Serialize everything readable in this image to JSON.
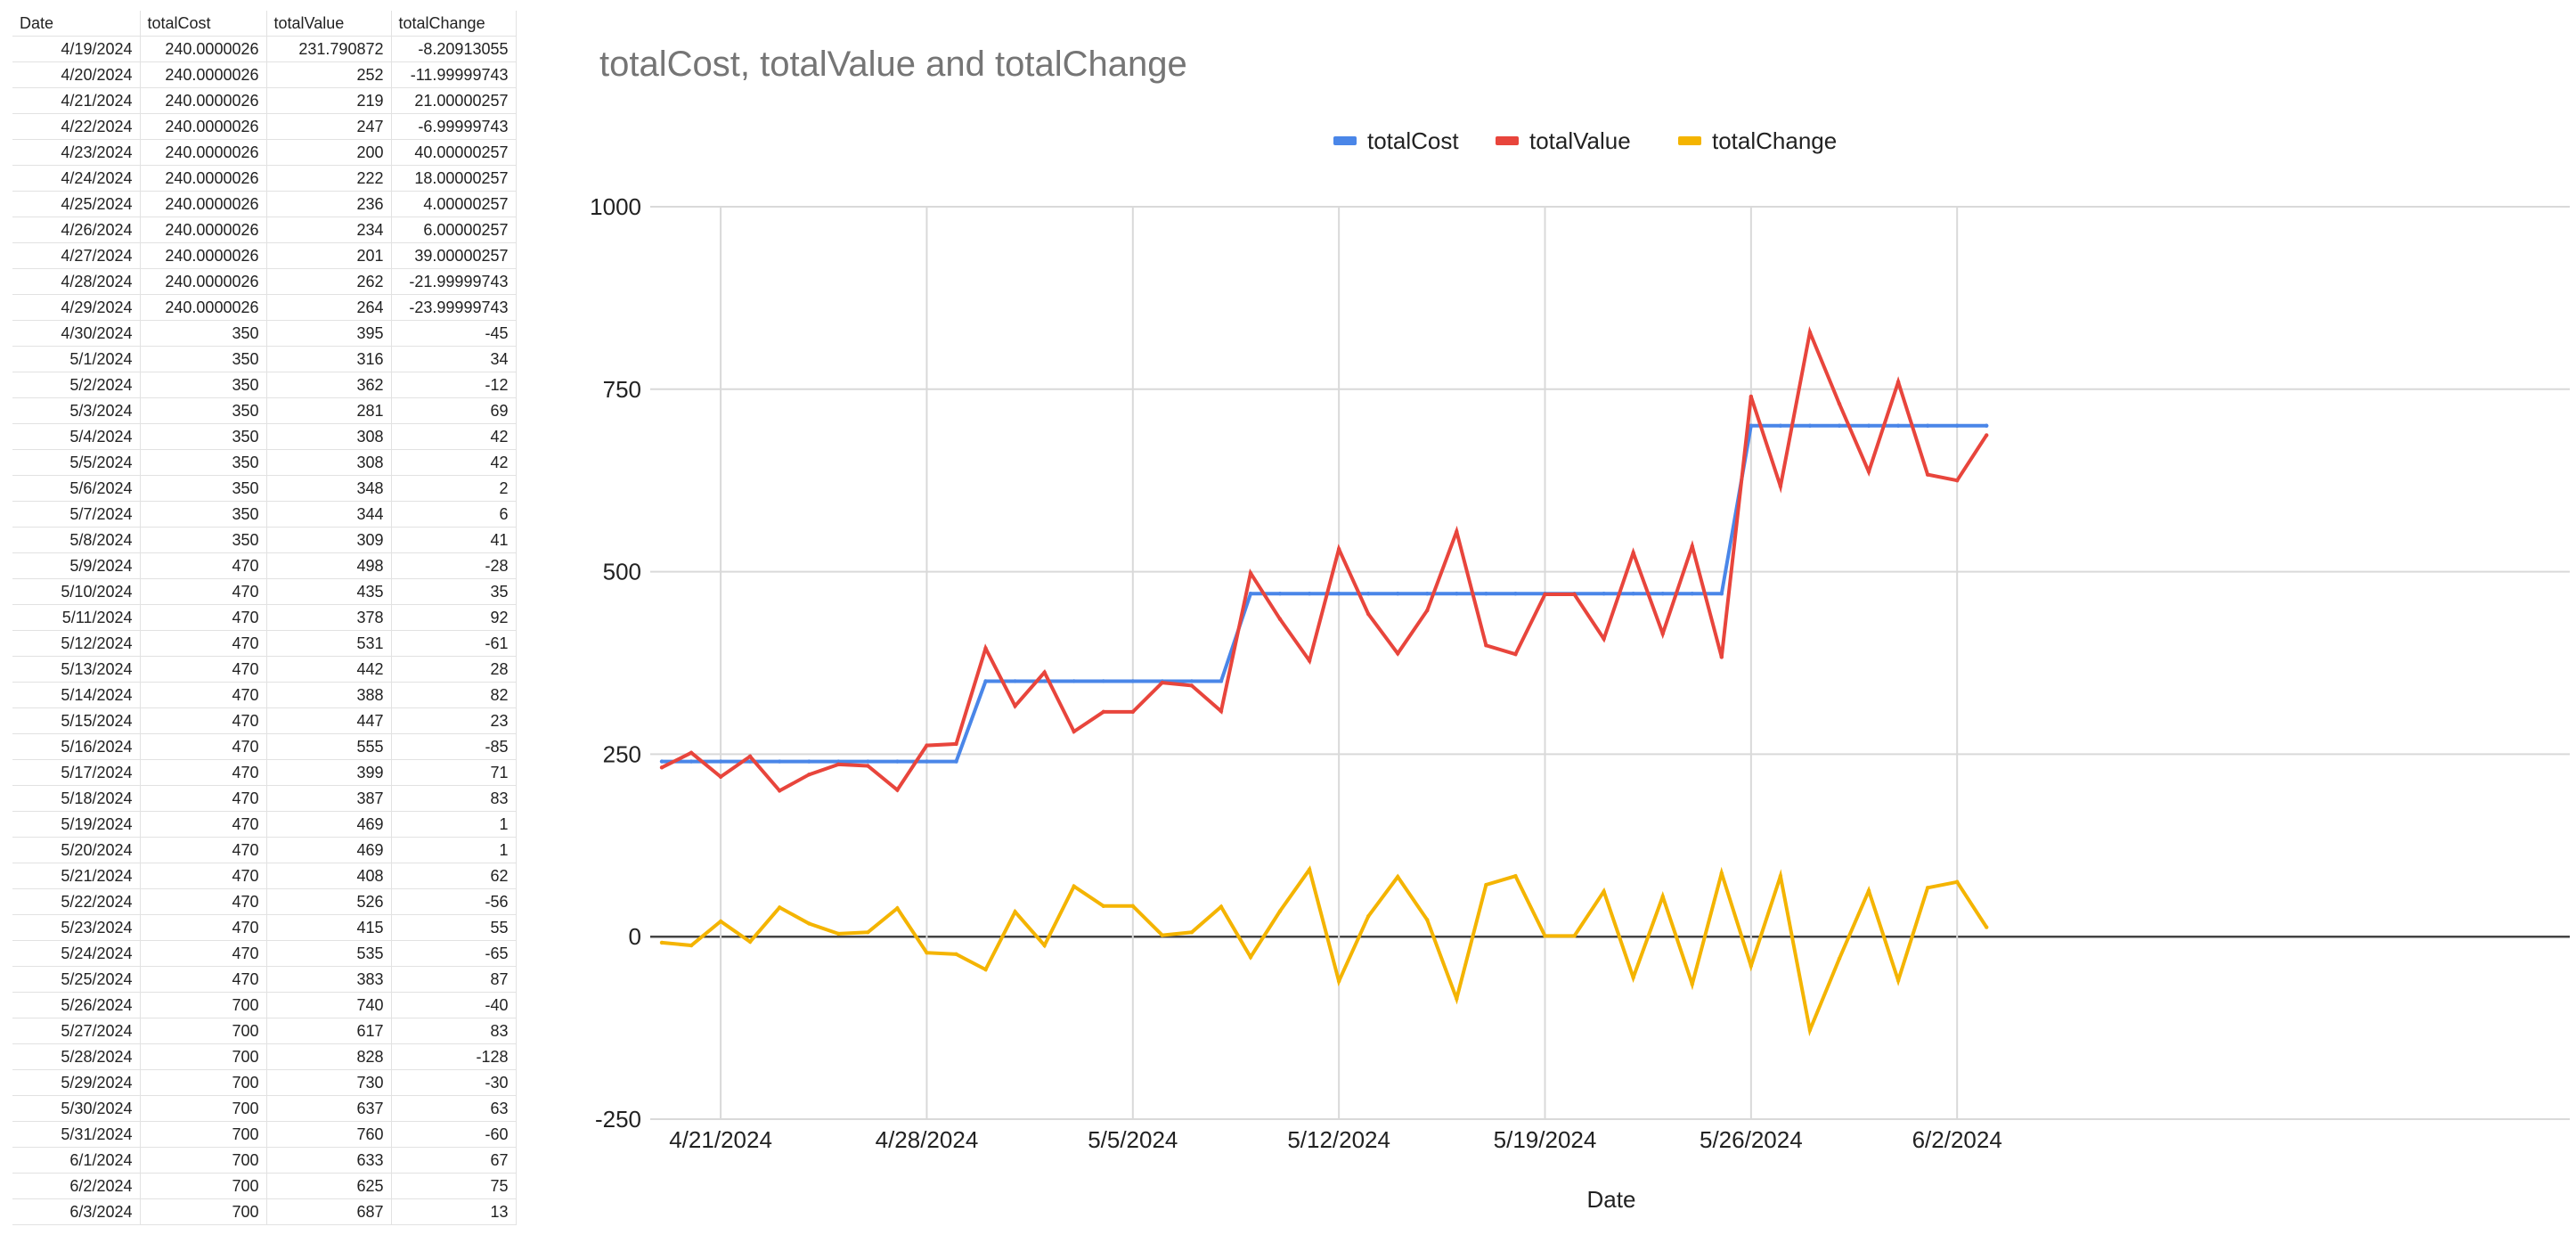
{
  "sheet": {
    "headers": [
      "Date",
      "totalCost",
      "totalValue",
      "totalChange"
    ],
    "rows": [
      [
        "4/19/2024",
        "240.0000026",
        "231.790872",
        "-8.20913055"
      ],
      [
        "4/20/2024",
        "240.0000026",
        "252",
        "-11.99999743"
      ],
      [
        "4/21/2024",
        "240.0000026",
        "219",
        "21.00000257"
      ],
      [
        "4/22/2024",
        "240.0000026",
        "247",
        "-6.99999743"
      ],
      [
        "4/23/2024",
        "240.0000026",
        "200",
        "40.00000257"
      ],
      [
        "4/24/2024",
        "240.0000026",
        "222",
        "18.00000257"
      ],
      [
        "4/25/2024",
        "240.0000026",
        "236",
        "4.00000257"
      ],
      [
        "4/26/2024",
        "240.0000026",
        "234",
        "6.00000257"
      ],
      [
        "4/27/2024",
        "240.0000026",
        "201",
        "39.00000257"
      ],
      [
        "4/28/2024",
        "240.0000026",
        "262",
        "-21.99999743"
      ],
      [
        "4/29/2024",
        "240.0000026",
        "264",
        "-23.99999743"
      ],
      [
        "4/30/2024",
        "350",
        "395",
        "-45"
      ],
      [
        "5/1/2024",
        "350",
        "316",
        "34"
      ],
      [
        "5/2/2024",
        "350",
        "362",
        "-12"
      ],
      [
        "5/3/2024",
        "350",
        "281",
        "69"
      ],
      [
        "5/4/2024",
        "350",
        "308",
        "42"
      ],
      [
        "5/5/2024",
        "350",
        "308",
        "42"
      ],
      [
        "5/6/2024",
        "350",
        "348",
        "2"
      ],
      [
        "5/7/2024",
        "350",
        "344",
        "6"
      ],
      [
        "5/8/2024",
        "350",
        "309",
        "41"
      ],
      [
        "5/9/2024",
        "470",
        "498",
        "-28"
      ],
      [
        "5/10/2024",
        "470",
        "435",
        "35"
      ],
      [
        "5/11/2024",
        "470",
        "378",
        "92"
      ],
      [
        "5/12/2024",
        "470",
        "531",
        "-61"
      ],
      [
        "5/13/2024",
        "470",
        "442",
        "28"
      ],
      [
        "5/14/2024",
        "470",
        "388",
        "82"
      ],
      [
        "5/15/2024",
        "470",
        "447",
        "23"
      ],
      [
        "5/16/2024",
        "470",
        "555",
        "-85"
      ],
      [
        "5/17/2024",
        "470",
        "399",
        "71"
      ],
      [
        "5/18/2024",
        "470",
        "387",
        "83"
      ],
      [
        "5/19/2024",
        "470",
        "469",
        "1"
      ],
      [
        "5/20/2024",
        "470",
        "469",
        "1"
      ],
      [
        "5/21/2024",
        "470",
        "408",
        "62"
      ],
      [
        "5/22/2024",
        "470",
        "526",
        "-56"
      ],
      [
        "5/23/2024",
        "470",
        "415",
        "55"
      ],
      [
        "5/24/2024",
        "470",
        "535",
        "-65"
      ],
      [
        "5/25/2024",
        "470",
        "383",
        "87"
      ],
      [
        "5/26/2024",
        "700",
        "740",
        "-40"
      ],
      [
        "5/27/2024",
        "700",
        "617",
        "83"
      ],
      [
        "5/28/2024",
        "700",
        "828",
        "-128"
      ],
      [
        "5/29/2024",
        "700",
        "730",
        "-30"
      ],
      [
        "5/30/2024",
        "700",
        "637",
        "63"
      ],
      [
        "5/31/2024",
        "700",
        "760",
        "-60"
      ],
      [
        "6/1/2024",
        "700",
        "633",
        "67"
      ],
      [
        "6/2/2024",
        "700",
        "625",
        "75"
      ],
      [
        "6/3/2024",
        "700",
        "687",
        "13"
      ]
    ]
  },
  "chart_data": {
    "type": "line",
    "title": "totalCost, totalValue and totalChange",
    "xlabel": "Date",
    "ylabel": "",
    "ylim": [
      -250,
      1000
    ],
    "yticks": [
      -250,
      0,
      250,
      500,
      750,
      1000
    ],
    "xticks": [
      {
        "index": 2,
        "label": "4/21/2024"
      },
      {
        "index": 9,
        "label": "4/28/2024"
      },
      {
        "index": 16,
        "label": "5/5/2024"
      },
      {
        "index": 23,
        "label": "5/12/2024"
      },
      {
        "index": 30,
        "label": "5/19/2024"
      },
      {
        "index": 37,
        "label": "5/26/2024"
      },
      {
        "index": 44,
        "label": "6/2/2024"
      }
    ],
    "grid": true,
    "legend_position": "top",
    "x": [
      "4/19/2024",
      "4/20/2024",
      "4/21/2024",
      "4/22/2024",
      "4/23/2024",
      "4/24/2024",
      "4/25/2024",
      "4/26/2024",
      "4/27/2024",
      "4/28/2024",
      "4/29/2024",
      "4/30/2024",
      "5/1/2024",
      "5/2/2024",
      "5/3/2024",
      "5/4/2024",
      "5/5/2024",
      "5/6/2024",
      "5/7/2024",
      "5/8/2024",
      "5/9/2024",
      "5/10/2024",
      "5/11/2024",
      "5/12/2024",
      "5/13/2024",
      "5/14/2024",
      "5/15/2024",
      "5/16/2024",
      "5/17/2024",
      "5/18/2024",
      "5/19/2024",
      "5/20/2024",
      "5/21/2024",
      "5/22/2024",
      "5/23/2024",
      "5/24/2024",
      "5/25/2024",
      "5/26/2024",
      "5/27/2024",
      "5/28/2024",
      "5/29/2024",
      "5/30/2024",
      "5/31/2024",
      "6/1/2024",
      "6/2/2024",
      "6/3/2024"
    ],
    "series": [
      {
        "name": "totalCost",
        "color": "#4a86e8",
        "values": [
          240,
          240,
          240,
          240,
          240,
          240,
          240,
          240,
          240,
          240,
          240,
          350,
          350,
          350,
          350,
          350,
          350,
          350,
          350,
          350,
          470,
          470,
          470,
          470,
          470,
          470,
          470,
          470,
          470,
          470,
          470,
          470,
          470,
          470,
          470,
          470,
          470,
          700,
          700,
          700,
          700,
          700,
          700,
          700,
          700,
          700
        ]
      },
      {
        "name": "totalValue",
        "color": "#e8453c",
        "values": [
          231.790872,
          252,
          219,
          247,
          200,
          222,
          236,
          234,
          201,
          262,
          264,
          395,
          316,
          362,
          281,
          308,
          308,
          348,
          344,
          309,
          498,
          435,
          378,
          531,
          442,
          388,
          447,
          555,
          399,
          387,
          469,
          469,
          408,
          526,
          415,
          535,
          383,
          740,
          617,
          828,
          730,
          637,
          760,
          633,
          625,
          687
        ]
      },
      {
        "name": "totalChange",
        "color": "#f4b400",
        "values": [
          -8.20913055,
          -11.99999743,
          21.00000257,
          -6.99999743,
          40.00000257,
          18.00000257,
          4.00000257,
          6.00000257,
          39.00000257,
          -21.99999743,
          -23.99999743,
          -45,
          34,
          -12,
          69,
          42,
          42,
          2,
          6,
          41,
          -28,
          35,
          92,
          -61,
          28,
          82,
          23,
          -85,
          71,
          83,
          1,
          1,
          62,
          -56,
          55,
          -65,
          87,
          -40,
          83,
          -128,
          -30,
          63,
          -60,
          67,
          75,
          13
        ]
      }
    ]
  }
}
